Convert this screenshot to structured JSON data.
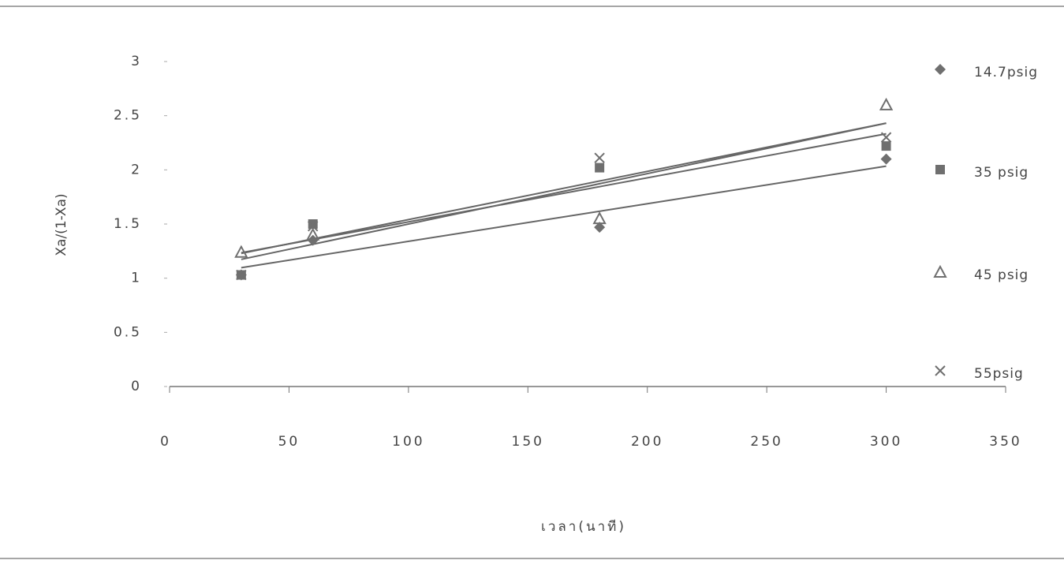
{
  "chart_data": {
    "type": "scatter",
    "x_label": "เวลา(นาที)",
    "y_label": "Xa/(1-Xa)",
    "x": [
      30,
      60,
      180,
      300
    ],
    "series": [
      {
        "name": "14.7psig",
        "marker": "diamond",
        "color": "#6f6f6f",
        "values": [
          1.03,
          1.35,
          1.47,
          2.1
        ]
      },
      {
        "name": "35 psig",
        "marker": "square",
        "color": "#6f6f6f",
        "values": [
          1.03,
          1.5,
          2.02,
          2.22
        ]
      },
      {
        "name": "45 psig",
        "marker": "triangle",
        "color": "#6f6f6f",
        "values": [
          1.24,
          1.4,
          1.55,
          2.6
        ]
      },
      {
        "name": "55psig",
        "marker": "x",
        "color": "#6f6f6f",
        "values": [
          1.03,
          1.48,
          2.11,
          2.3
        ]
      }
    ],
    "trendline": true,
    "xlim": [
      0,
      350
    ],
    "xticks": [
      0,
      50,
      100,
      150,
      200,
      250,
      300,
      350
    ],
    "ylim": [
      0,
      3
    ],
    "yticks": [
      0,
      0.5,
      1,
      1.5,
      2,
      2.5,
      3
    ],
    "legend": "right"
  }
}
